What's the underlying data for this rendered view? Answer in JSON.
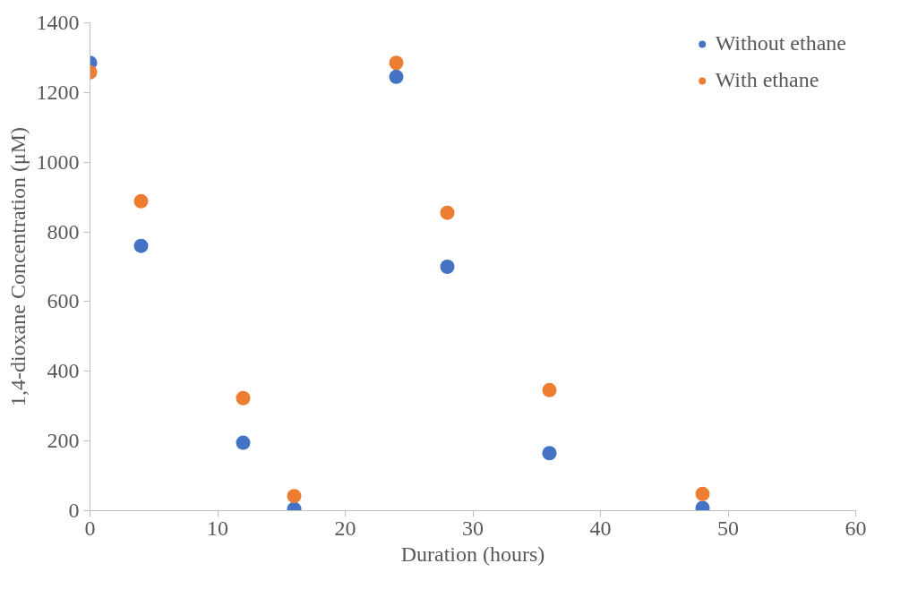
{
  "chart_data": {
    "type": "scatter",
    "xlabel": "Duration (hours)",
    "ylabel": "1,4-dioxane Concentration (μM)",
    "x": [
      0,
      4,
      12,
      16,
      24,
      28,
      36,
      48
    ],
    "series": [
      {
        "name": "Without ethane",
        "color": "#4472c4",
        "values": [
          1285,
          760,
          195,
          5,
          1245,
          700,
          165,
          8
        ]
      },
      {
        "name": "With ethane",
        "color": "#ed7d31",
        "values": [
          1258,
          888,
          323,
          42,
          1285,
          855,
          346,
          48
        ]
      }
    ],
    "xlim": [
      0,
      60
    ],
    "xticks": [
      0,
      10,
      20,
      30,
      40,
      50,
      60
    ],
    "ylim": [
      0,
      1400
    ],
    "yticks": [
      0,
      200,
      400,
      600,
      800,
      1000,
      1200,
      1400
    ],
    "grid": false,
    "legend": "top right",
    "marker": "circle"
  }
}
